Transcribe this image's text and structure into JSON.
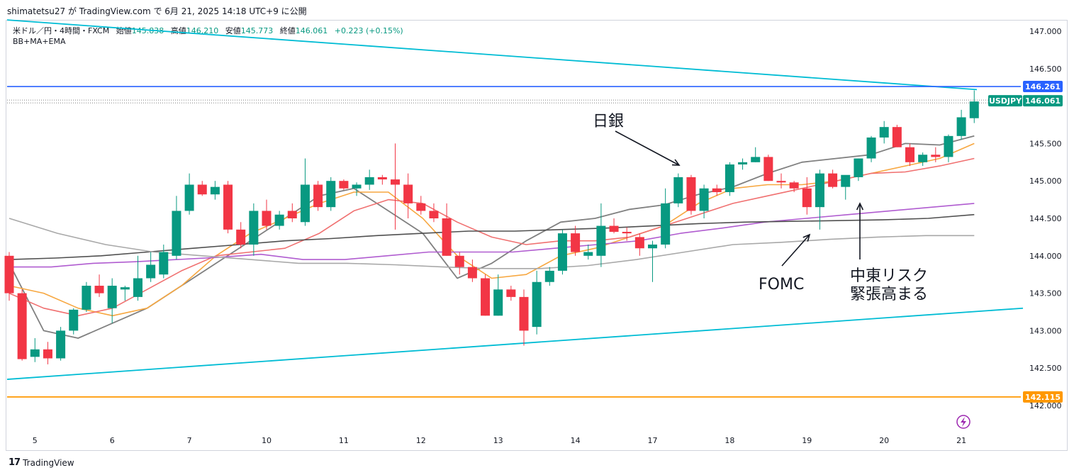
{
  "header": {
    "text": "shimatetsu27 が TradingView.com で 6月 21, 2025 14:18 UTC+9 に公開"
  },
  "info": {
    "symbol": "米ドル／円・4時間・FXCM",
    "open_label": "始値",
    "open": "145.838",
    "high_label": "高値",
    "high": "146.210",
    "low_label": "安値",
    "low": "145.773",
    "close_label": "終値",
    "close": "146.061",
    "change": "+0.223 (+0.15%)"
  },
  "indicator": "BB+MA+EMA",
  "footer": {
    "brand": "TradingView",
    "logo": "17"
  },
  "badges": {
    "blue_line": "146.261",
    "symbol_tag": "USDJPY",
    "last_price": "146.061",
    "orange_line": "142.115"
  },
  "annotations": {
    "boj": "日銀",
    "fomc": "FOMC",
    "mideast_line1": "中東リスク",
    "mideast_line2": "緊張高まる"
  },
  "colors": {
    "up": "#089981",
    "down": "#f23645",
    "trendline": "#00bcd4",
    "resistance": "#2962ff",
    "support": "#ff9800",
    "ma_gray": "#808080",
    "ema_orange": "#f7a740",
    "ema_red": "#f07070",
    "ma_purple": "#b05cd0",
    "ma_dark": "#505050",
    "bb_gray": "#a8a8a8"
  },
  "chart_data": {
    "type": "candlestick",
    "ylim": [
      141.8,
      147.1
    ],
    "yticks": [
      "147.000",
      "146.500",
      "145.500",
      "145.000",
      "144.500",
      "144.000",
      "143.500",
      "143.000",
      "142.500",
      "142.000"
    ],
    "xticks": [
      "5",
      "6",
      "7",
      "10",
      "11",
      "12",
      "13",
      "14",
      "17",
      "18",
      "19",
      "20",
      "21"
    ],
    "candles": [
      [
        144.0,
        144.05,
        143.4,
        143.5
      ],
      [
        143.5,
        143.55,
        142.6,
        142.62
      ],
      [
        142.65,
        142.9,
        142.58,
        142.75
      ],
      [
        142.75,
        142.85,
        142.55,
        142.63
      ],
      [
        142.63,
        143.05,
        142.6,
        143.0
      ],
      [
        143.0,
        143.3,
        142.95,
        143.28
      ],
      [
        143.28,
        143.65,
        143.25,
        143.6
      ],
      [
        143.6,
        143.75,
        143.45,
        143.5
      ],
      [
        143.3,
        143.7,
        143.1,
        143.6
      ],
      [
        143.55,
        143.6,
        143.4,
        143.58
      ],
      [
        143.45,
        144.0,
        143.4,
        143.7
      ],
      [
        143.7,
        144.05,
        143.65,
        143.88
      ],
      [
        143.75,
        144.15,
        143.7,
        144.05
      ],
      [
        144.0,
        144.8,
        143.95,
        144.6
      ],
      [
        144.6,
        145.1,
        144.55,
        144.95
      ],
      [
        144.95,
        145.0,
        144.8,
        144.82
      ],
      [
        144.82,
        145.0,
        144.75,
        144.92
      ],
      [
        144.95,
        145.0,
        144.3,
        144.35
      ],
      [
        144.35,
        144.45,
        144.1,
        144.15
      ],
      [
        144.15,
        144.7,
        144.0,
        144.6
      ],
      [
        144.6,
        144.75,
        144.35,
        144.4
      ],
      [
        144.4,
        144.6,
        144.35,
        144.55
      ],
      [
        144.6,
        144.7,
        144.45,
        144.5
      ],
      [
        144.45,
        145.3,
        144.4,
        144.95
      ],
      [
        144.95,
        145.0,
        144.6,
        144.65
      ],
      [
        144.65,
        145.05,
        144.6,
        145.0
      ],
      [
        145.0,
        145.02,
        144.88,
        144.9
      ],
      [
        144.9,
        144.98,
        144.8,
        144.95
      ],
      [
        144.95,
        145.15,
        144.88,
        145.05
      ],
      [
        145.05,
        145.08,
        144.95,
        145.02
      ],
      [
        145.02,
        145.5,
        144.35,
        144.95
      ],
      [
        144.95,
        145.1,
        144.5,
        144.7
      ],
      [
        144.7,
        144.8,
        144.55,
        144.6
      ],
      [
        144.6,
        144.7,
        144.45,
        144.5
      ],
      [
        144.5,
        144.7,
        144.0,
        144.0
      ],
      [
        144.0,
        144.05,
        143.75,
        143.85
      ],
      [
        143.85,
        143.95,
        143.65,
        143.7
      ],
      [
        143.7,
        143.75,
        143.2,
        143.2
      ],
      [
        143.2,
        143.75,
        143.2,
        143.55
      ],
      [
        143.55,
        143.6,
        143.4,
        143.45
      ],
      [
        143.45,
        143.55,
        142.8,
        143.0
      ],
      [
        143.05,
        143.8,
        142.95,
        143.65
      ],
      [
        143.65,
        143.85,
        143.6,
        143.8
      ],
      [
        143.8,
        144.35,
        143.75,
        144.3
      ],
      [
        144.3,
        144.4,
        144.0,
        144.05
      ],
      [
        144.0,
        144.15,
        143.95,
        144.05
      ],
      [
        144.0,
        144.7,
        143.85,
        144.4
      ],
      [
        144.4,
        144.5,
        144.3,
        144.32
      ],
      [
        144.32,
        144.38,
        144.2,
        144.3
      ],
      [
        144.25,
        144.3,
        144.0,
        144.1
      ],
      [
        144.1,
        144.2,
        143.65,
        144.15
      ],
      [
        144.15,
        144.9,
        144.1,
        144.7
      ],
      [
        144.7,
        145.1,
        144.65,
        145.05
      ],
      [
        145.05,
        145.08,
        144.55,
        144.6
      ],
      [
        144.6,
        144.95,
        144.5,
        144.9
      ],
      [
        144.9,
        144.95,
        144.8,
        144.85
      ],
      [
        144.85,
        145.25,
        144.8,
        145.22
      ],
      [
        145.22,
        145.3,
        145.15,
        145.25
      ],
      [
        145.25,
        145.45,
        145.25,
        145.32
      ],
      [
        145.32,
        145.35,
        145.0,
        145.0
      ],
      [
        145.0,
        145.1,
        144.9,
        144.98
      ],
      [
        144.98,
        145.0,
        144.85,
        144.9
      ],
      [
        144.9,
        145.05,
        144.55,
        144.65
      ],
      [
        144.65,
        145.15,
        144.35,
        145.1
      ],
      [
        145.1,
        145.15,
        144.9,
        144.92
      ],
      [
        144.92,
        145.05,
        144.75,
        145.08
      ],
      [
        145.05,
        145.3,
        145.0,
        145.3
      ],
      [
        145.3,
        145.6,
        145.25,
        145.58
      ],
      [
        145.58,
        145.8,
        145.5,
        145.72
      ],
      [
        145.72,
        145.75,
        145.45,
        145.45
      ],
      [
        145.45,
        145.5,
        145.2,
        145.25
      ],
      [
        145.25,
        145.38,
        145.2,
        145.35
      ],
      [
        145.35,
        145.45,
        145.25,
        145.32
      ],
      [
        145.32,
        145.62,
        145.25,
        145.6
      ],
      [
        145.6,
        145.95,
        145.55,
        145.85
      ],
      [
        145.838,
        146.21,
        145.773,
        146.061
      ]
    ],
    "day_start_index": [
      2,
      8,
      14,
      20,
      26,
      32,
      38,
      44,
      50,
      56,
      62,
      68,
      74
    ],
    "series": [
      {
        "color_key": "ma_gray",
        "width": 1.8,
        "values": [
          143.9,
          143.0,
          142.9,
          143.1,
          143.3,
          143.6,
          143.9,
          144.2,
          144.5,
          144.8,
          144.9,
          144.6,
          144.3,
          143.7,
          143.9,
          144.2,
          144.45,
          144.5,
          144.62,
          144.68,
          144.82,
          144.92,
          145.1,
          145.25,
          145.3,
          145.35,
          145.5,
          145.48,
          145.6
        ]
      },
      {
        "color_key": "ema_orange",
        "width": 1.6,
        "values": [
          143.6,
          143.5,
          143.3,
          143.2,
          143.3,
          143.6,
          144.0,
          144.3,
          144.5,
          144.7,
          144.85,
          144.85,
          144.5,
          144.0,
          143.7,
          143.75,
          144.0,
          144.1,
          144.25,
          144.4,
          144.7,
          144.9,
          144.95,
          144.95,
          145.0,
          145.1,
          145.2,
          145.3,
          145.5
        ]
      },
      {
        "color_key": "ema_red",
        "width": 1.6,
        "values": [
          143.5,
          143.3,
          143.2,
          143.3,
          143.55,
          143.8,
          144.0,
          144.05,
          144.1,
          144.3,
          144.6,
          144.75,
          144.7,
          144.45,
          144.25,
          144.15,
          144.2,
          144.2,
          144.25,
          144.4,
          144.55,
          144.7,
          144.8,
          144.9,
          145.0,
          145.1,
          145.12,
          145.2,
          145.3
        ]
      },
      {
        "color_key": "ma_purple",
        "width": 1.6,
        "values": [
          143.85,
          143.85,
          143.9,
          143.92,
          143.95,
          143.98,
          144.02,
          143.95,
          143.95,
          144.0,
          144.05,
          144.05,
          144.05,
          144.1,
          144.15,
          144.2,
          144.3,
          144.37,
          144.45,
          144.5,
          144.55,
          144.6,
          144.65,
          144.7
        ]
      },
      {
        "color_key": "ma_dark",
        "width": 1.6,
        "values": [
          143.95,
          143.97,
          144.0,
          144.05,
          144.1,
          144.15,
          144.2,
          144.23,
          144.27,
          144.3,
          144.33,
          144.33,
          144.35,
          144.37,
          144.4,
          144.43,
          144.45,
          144.46,
          144.47,
          144.48,
          144.5,
          144.55
        ]
      },
      {
        "color_key": "bb_gray",
        "width": 1.6,
        "values": [
          144.5,
          144.3,
          144.15,
          144.05,
          144.0,
          143.95,
          143.9,
          143.9,
          143.88,
          143.85,
          143.83,
          143.83,
          143.87,
          143.95,
          144.05,
          144.15,
          144.18,
          144.22,
          144.25,
          144.27,
          144.27
        ]
      }
    ],
    "lines": {
      "upper_trend": [
        [
          0,
          147.15
        ],
        [
          1370,
          146.22
        ]
      ],
      "lower_trend": [
        [
          0,
          142.35
        ],
        [
          1435,
          143.3
        ]
      ],
      "resistance": 146.261,
      "support": 142.115,
      "last_price": 146.061
    }
  }
}
